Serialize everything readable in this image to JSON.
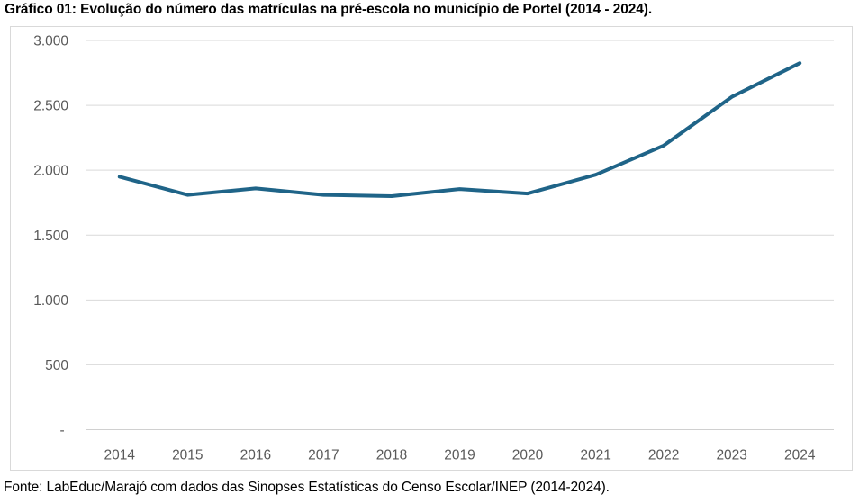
{
  "title": "Gráfico 01: Evolução do número das matrículas na pré-escola no município de Portel (2014 - 2024).",
  "footer": "Fonte: LabEduc/Marajó com dados das Sinopses Estatísticas do Censo Escolar/INEP (2014-2024).",
  "chart_data": {
    "type": "line",
    "title": "Evolução do número das matrículas na pré-escola no município de Portel (2014 - 2024)",
    "categories": [
      "2014",
      "2015",
      "2016",
      "2017",
      "2018",
      "2019",
      "2020",
      "2021",
      "2022",
      "2023",
      "2024"
    ],
    "series": [
      {
        "name": "Matrículas na pré-escola",
        "values": [
          1950,
          1810,
          1860,
          1810,
          1800,
          1855,
          1820,
          1965,
          2190,
          2565,
          2825
        ]
      }
    ],
    "xlabel": "",
    "ylabel": "",
    "ylim": [
      0,
      3000
    ],
    "y_ticks": [
      0,
      500,
      1000,
      1500,
      2000,
      2500,
      3000
    ],
    "y_tick_labels": [
      "- ",
      "500",
      "1.000",
      "1.500",
      "2.000",
      "2.500",
      "3.000"
    ],
    "grid": true,
    "legend_position": "none",
    "line_color": "#1f6488",
    "gridline_color": "#d9d9d9",
    "axis_line_color": "#d0d0d0",
    "axis_label_color": "#595959"
  }
}
